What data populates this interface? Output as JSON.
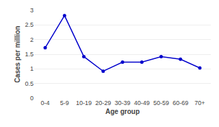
{
  "chart_data": {
    "type": "line",
    "xlabel": "Age group",
    "ylabel": "Cases per million",
    "categories": [
      "0-4",
      "5-9",
      "10-19",
      "20-29",
      "30-39",
      "40-49",
      "50-59",
      "60-69",
      "70+"
    ],
    "values": [
      1.72,
      2.82,
      1.42,
      0.92,
      1.23,
      1.23,
      1.42,
      1.33,
      1.03
    ],
    "color": "#0000cc",
    "marker": "circle",
    "ylim": [
      0,
      3.0
    ],
    "yticks": [
      0,
      0.5,
      1.0,
      1.5,
      2.0,
      2.5,
      3.0
    ],
    "grid": true
  }
}
